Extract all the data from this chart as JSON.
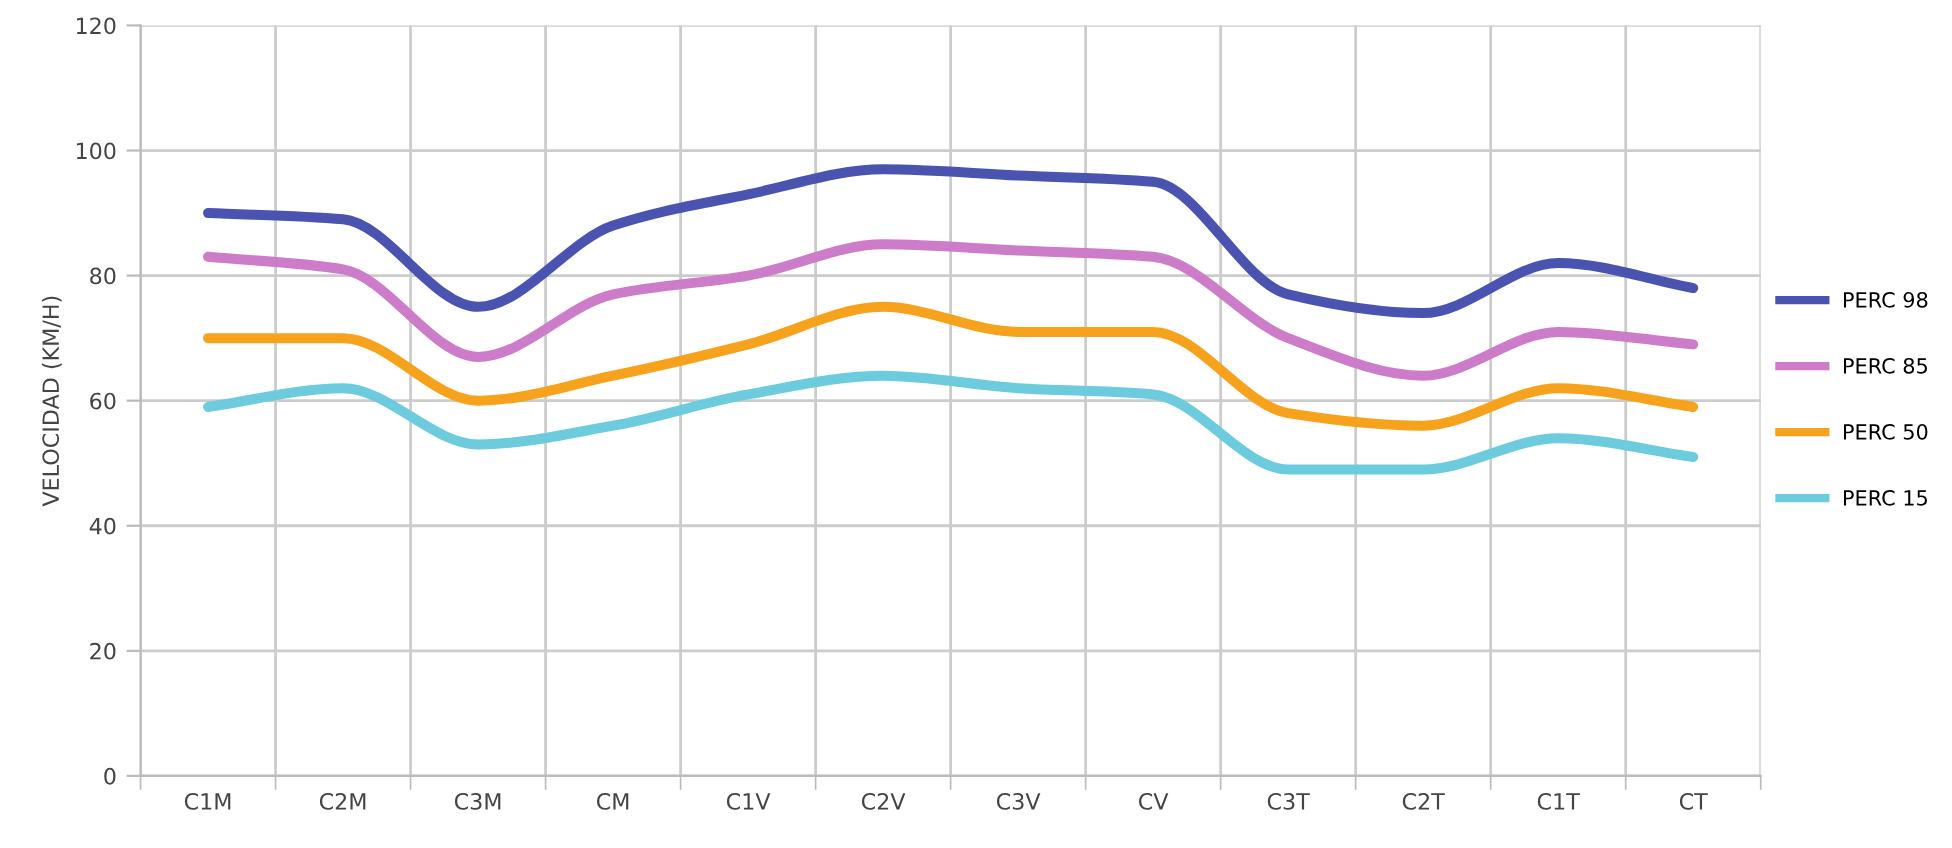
{
  "chart_data": {
    "type": "line",
    "ylabel": "VELOCIDAD (KM/H)",
    "categories": [
      "C1M",
      "C2M",
      "C3M",
      "CM",
      "C1V",
      "C2V",
      "C3V",
      "CV",
      "C3T",
      "C2T",
      "C1T",
      "CT"
    ],
    "series": [
      {
        "name": "PERC 98",
        "color": "#4a54b0",
        "values": [
          90,
          89,
          75,
          88,
          93,
          97,
          96,
          95,
          77,
          74,
          82,
          78
        ]
      },
      {
        "name": "PERC 85",
        "color": "#cc7cc8",
        "values": [
          83,
          81,
          67,
          77,
          80,
          85,
          84,
          83,
          70,
          64,
          71,
          69
        ]
      },
      {
        "name": "PERC 50",
        "color": "#f7a21c",
        "values": [
          70,
          70,
          60,
          64,
          69,
          75,
          71,
          71,
          58,
          56,
          62,
          59
        ]
      },
      {
        "name": "PERC 15",
        "color": "#6ccbdc",
        "values": [
          59,
          62,
          53,
          56,
          61,
          64,
          62,
          61,
          49,
          49,
          54,
          51
        ]
      }
    ],
    "ylim": [
      0,
      120
    ],
    "yticks": [
      0,
      20,
      40,
      60,
      80,
      100,
      120
    ],
    "grid": true,
    "legend": "right",
    "marker": "none",
    "line_style": "solid"
  }
}
